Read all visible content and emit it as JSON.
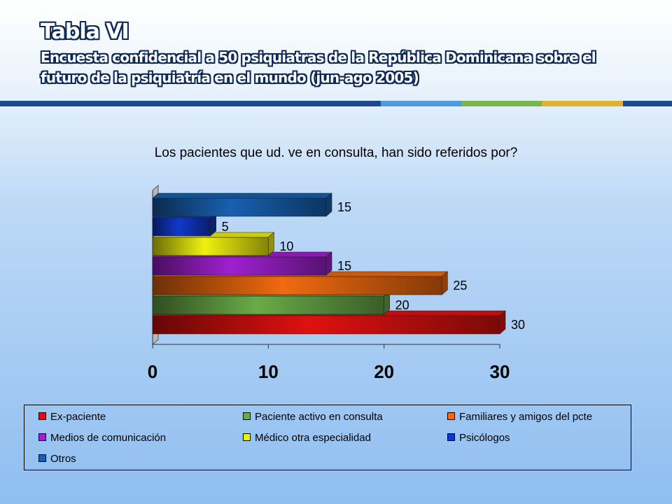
{
  "slide": {
    "title": "Tabla VI",
    "subtitle": "Encuesta confidencial a 50 psiquiatras de la República Dominicana sobre el futuro de la psiquiatría en el mundo (jun-ago 2005)",
    "rule_colors": [
      "#1a4a8c",
      "#4a9ee0",
      "#7ab648",
      "#e0b42a",
      "#1a4a8c"
    ]
  },
  "chart_data": {
    "type": "bar",
    "orientation": "horizontal",
    "title": "Los pacientes que ud. ve en consulta, han sido referidos por?",
    "xlim": [
      0,
      30
    ],
    "xticks": [
      "0",
      "10",
      "20",
      "30"
    ],
    "grid": false,
    "legend_position": "bottom",
    "series": [
      {
        "name": "Ex-paciente",
        "value": 30,
        "label": "30",
        "color": "#e01010"
      },
      {
        "name": "Paciente activo en consulta",
        "value": 20,
        "label": "20",
        "color": "#6aaa48"
      },
      {
        "name": "Familiares y amigos del pcte",
        "value": 25,
        "label": "25",
        "color": "#f06a10"
      },
      {
        "name": "Medios de comunicación",
        "value": 15,
        "label": "15",
        "color": "#a020d0"
      },
      {
        "name": "Médico otra especialidad",
        "value": 10,
        "label": "10",
        "color": "#f0f010"
      },
      {
        "name": "Psicólogos",
        "value": 5,
        "label": "5",
        "color": "#1038c8"
      },
      {
        "name": "Otros",
        "value": 15,
        "label": "15",
        "color": "#1860b0"
      }
    ]
  }
}
